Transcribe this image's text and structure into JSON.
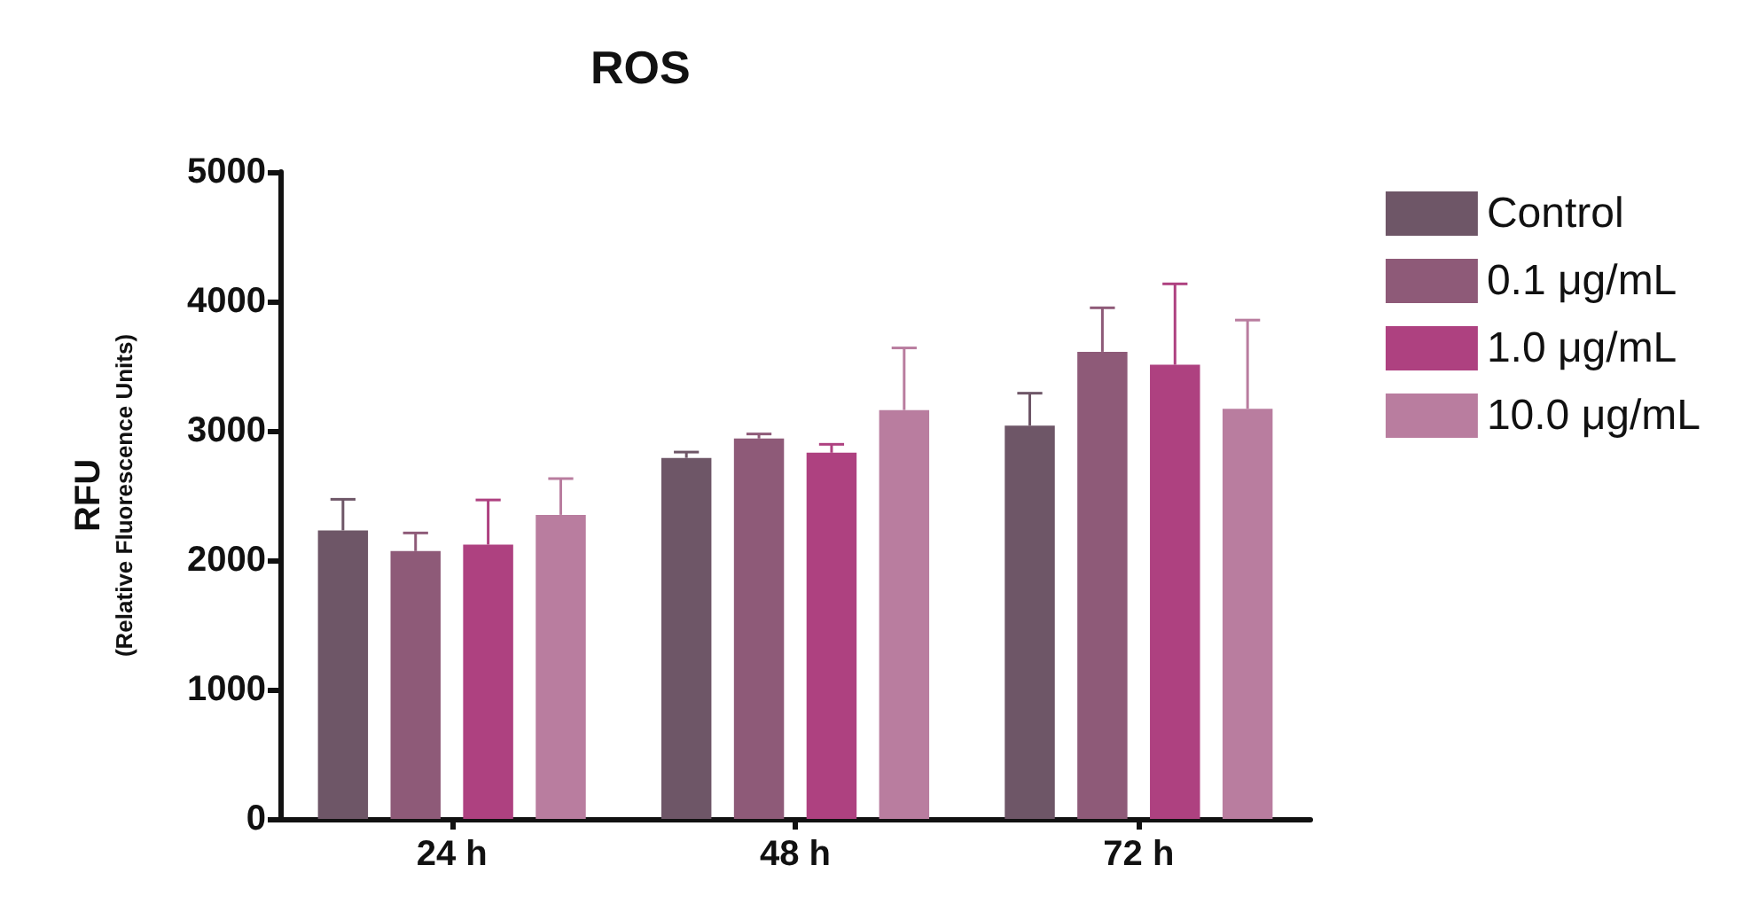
{
  "chart_data": {
    "type": "bar",
    "title": "ROS",
    "ylabel": "RFU\n(Relative Fluorescence Units)",
    "categories": [
      "24 h",
      "48 h",
      "72 h"
    ],
    "series": [
      {
        "name": "Control",
        "color": "#6e5667",
        "values": [
          2230,
          2790,
          3040
        ],
        "errors": [
          240,
          45,
          250
        ]
      },
      {
        "name": "0.1 μg/mL",
        "color": "#8e5a78",
        "values": [
          2070,
          2940,
          3610
        ],
        "errors": [
          140,
          35,
          340
        ]
      },
      {
        "name": "1.0 μg/mL",
        "color": "#ae4180",
        "values": [
          2120,
          2830,
          3510
        ],
        "errors": [
          345,
          65,
          625
        ]
      },
      {
        "name": "10.0 μg/mL",
        "color": "#b97d9f",
        "values": [
          2350,
          3160,
          3170
        ],
        "errors": [
          280,
          480,
          685
        ]
      }
    ],
    "ylim": [
      0,
      5000
    ],
    "yticks": [
      0,
      1000,
      2000,
      3000,
      4000,
      5000
    ],
    "grid": false,
    "legend": "right"
  }
}
